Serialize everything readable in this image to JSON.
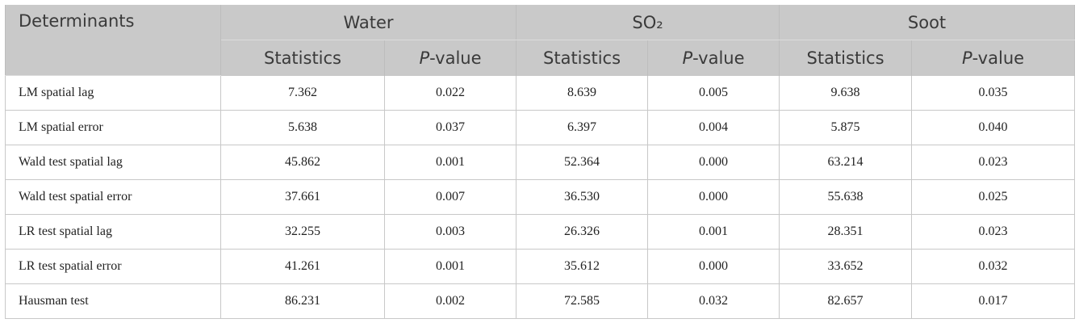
{
  "table": {
    "header": [
      "Determinants",
      "Water",
      "SO₂",
      "Soot"
    ],
    "subheader": [
      "Statistics",
      "P-value",
      "Statistics",
      "P-value",
      "Statistics",
      "P-value"
    ],
    "rows": [
      [
        "LM spatial lag",
        "7.362",
        "0.022",
        "8.639",
        "0.005",
        "9.638",
        "0.035"
      ],
      [
        "LM spatial error",
        "5.638",
        "0.037",
        "6.397",
        "0.004",
        "5.875",
        "0.040"
      ],
      [
        "Wald test spatial lag",
        "45.862",
        "0.001",
        "52.364",
        "0.000",
        "63.214",
        "0.023"
      ],
      [
        "Wald test spatial error",
        "37.661",
        "0.007",
        "36.530",
        "0.000",
        "55.638",
        "0.025"
      ],
      [
        "LR test spatial lag",
        "32.255",
        "0.003",
        "26.326",
        "0.001",
        "28.351",
        "0.023"
      ],
      [
        "LR test spatial error",
        "41.261",
        "0.001",
        "35.612",
        "0.000",
        "33.652",
        "0.032"
      ],
      [
        "Hausman test",
        "86.231",
        "0.002",
        "72.585",
        "0.032",
        "82.657",
        "0.017"
      ]
    ]
  }
}
